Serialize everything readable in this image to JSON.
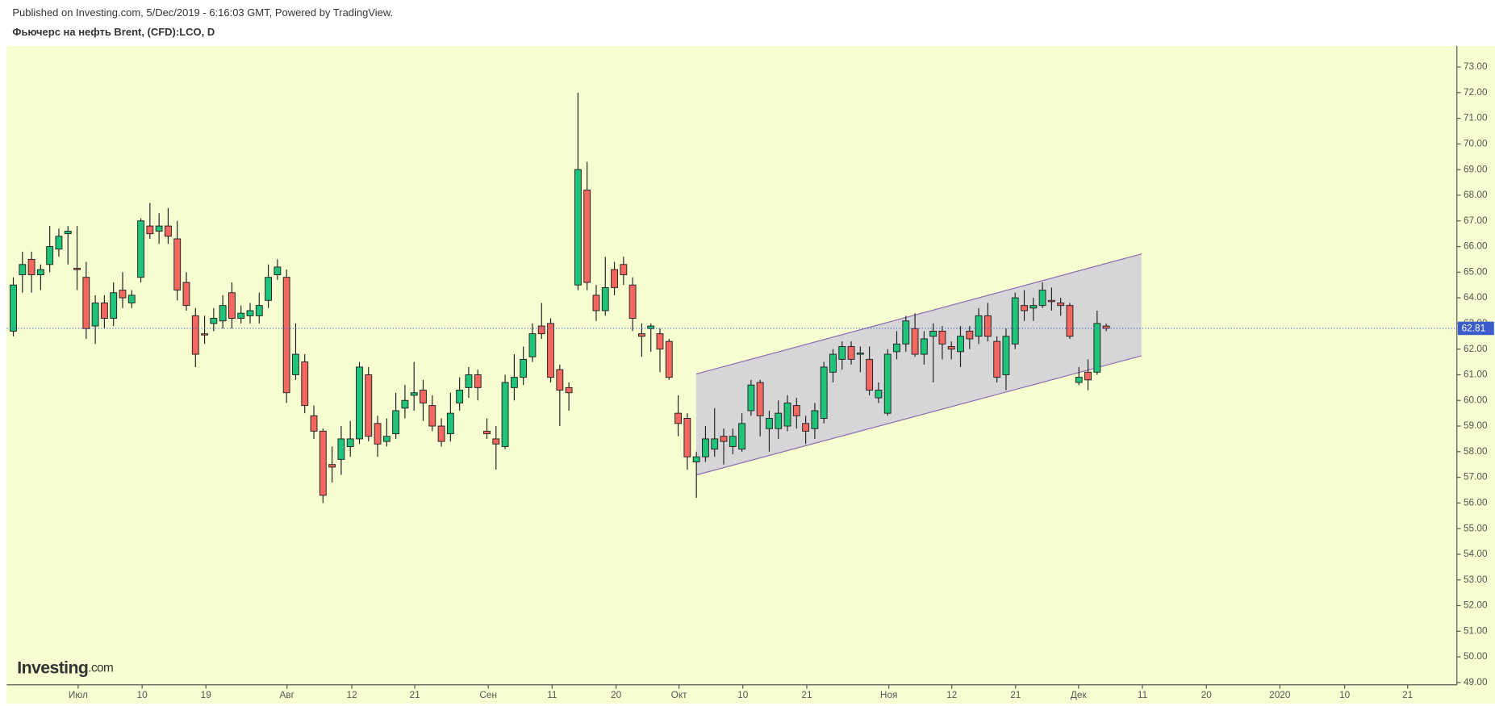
{
  "header": {
    "published": "Published on Investing.com, 5/Dec/2019 - 6:16:03 GMT, Powered by TradingView.",
    "instrument": "Фьючерс на нефть Brent, (CFD):LCO, D"
  },
  "logo": {
    "name": "Investing",
    "suffix": ".com"
  },
  "chart_data": {
    "type": "candlestick",
    "background": "#f6fdd0",
    "up_color": "#1fc47a",
    "down_color": "#f2675f",
    "grid": false,
    "x": [
      0,
      1,
      2,
      3,
      4,
      5,
      6,
      7,
      8,
      9,
      10,
      11,
      12,
      13,
      14,
      15,
      16,
      17,
      18,
      19,
      20,
      21,
      22,
      23,
      24,
      25,
      26,
      27,
      28,
      29,
      30,
      31,
      32,
      33,
      34,
      35,
      36,
      37,
      38,
      39,
      40,
      41,
      42,
      43,
      44,
      45,
      46,
      47,
      48,
      49,
      50,
      51,
      52,
      53,
      54,
      55,
      56,
      57,
      58,
      59,
      60,
      61,
      62,
      63,
      64,
      65,
      66,
      67,
      68,
      69,
      70,
      71,
      72,
      73,
      74,
      75,
      76,
      77,
      78,
      79,
      80,
      81,
      82,
      83,
      84,
      85,
      86,
      87,
      88,
      89,
      90,
      91,
      92,
      93,
      94,
      95,
      96,
      97,
      98,
      99,
      100,
      101,
      102,
      103,
      104,
      105,
      106,
      107,
      108,
      109,
      110,
      111,
      112,
      113,
      114,
      115,
      116,
      117,
      118,
      119,
      120
    ],
    "open": [
      62.7,
      64.9,
      65.5,
      64.9,
      65.3,
      65.9,
      66.5,
      65.15,
      64.8,
      62.9,
      63.8,
      63.2,
      64.3,
      63.8,
      64.8,
      66.8,
      66.6,
      66.8,
      66.3,
      64.6,
      63.3,
      62.6,
      63.0,
      63.1,
      64.2,
      63.2,
      63.3,
      63.3,
      63.9,
      64.9,
      64.8,
      61.0,
      61.5,
      59.4,
      58.8,
      57.5,
      57.7,
      58.2,
      58.5,
      61.0,
      59.1,
      58.4,
      58.7,
      59.7,
      60.2,
      60.4,
      59.8,
      59.0,
      58.7,
      59.9,
      60.5,
      61.0,
      58.8,
      58.5,
      58.2,
      60.5,
      60.9,
      61.7,
      62.9,
      63.0,
      61.2,
      60.5,
      64.5,
      68.2,
      64.1,
      63.5,
      65.1,
      65.3,
      64.5,
      62.6,
      62.8,
      62.6,
      62.3,
      59.5,
      59.3,
      57.6,
      57.8,
      58.1,
      58.6,
      58.2,
      58.1,
      59.6,
      60.7,
      58.9,
      58.9,
      59.0,
      59.8,
      59.1,
      58.9,
      59.3,
      61.1,
      61.6,
      62.1,
      61.8,
      61.6,
      60.1,
      59.5,
      61.9,
      62.2,
      62.8,
      61.8,
      62.5,
      62.7,
      62.1,
      61.9,
      62.7,
      62.5,
      63.3,
      62.3,
      61.0,
      62.2,
      63.7,
      63.6,
      63.7,
      63.9,
      63.8,
      63.7,
      60.7,
      61.1,
      61.1,
      62.9
    ],
    "high": [
      64.8,
      65.8,
      65.8,
      65.3,
      66.8,
      66.7,
      66.8,
      66.8,
      65.4,
      64.1,
      64.1,
      64.6,
      65.0,
      64.3,
      67.1,
      67.7,
      67.3,
      67.5,
      67.0,
      65.0,
      63.6,
      63.3,
      63.6,
      64.1,
      64.6,
      63.7,
      63.8,
      64.2,
      65.3,
      65.5,
      65.1,
      63.0,
      61.8,
      59.8,
      58.9,
      58.2,
      59.0,
      59.2,
      61.5,
      61.3,
      59.4,
      59.3,
      60.3,
      60.6,
      61.5,
      60.8,
      60.2,
      59.3,
      60.3,
      60.9,
      61.3,
      61.2,
      59.3,
      59.0,
      61.0,
      61.8,
      62.1,
      63.0,
      63.8,
      63.2,
      61.4,
      60.7,
      72.0,
      69.3,
      64.5,
      65.6,
      65.4,
      65.6,
      64.8,
      63.0,
      63.0,
      62.8,
      62.4,
      60.2,
      59.5,
      58.0,
      59.0,
      59.7,
      58.9,
      58.9,
      59.5,
      60.8,
      60.8,
      59.6,
      60.0,
      60.2,
      60.1,
      59.4,
      59.9,
      61.5,
      62.0,
      62.3,
      62.3,
      62.1,
      62.1,
      60.7,
      62.0,
      62.7,
      63.3,
      63.4,
      62.7,
      63.0,
      62.9,
      62.3,
      62.9,
      62.9,
      63.6,
      63.8,
      62.5,
      62.8,
      64.2,
      64.3,
      64.0,
      64.6,
      64.4,
      64.0,
      63.8,
      61.3,
      61.6,
      63.5,
      63.0
    ],
    "low": [
      62.5,
      64.2,
      64.2,
      64.3,
      65.0,
      65.6,
      65.3,
      64.3,
      62.4,
      62.2,
      62.8,
      62.9,
      63.6,
      63.6,
      64.6,
      66.3,
      66.1,
      66.1,
      63.9,
      63.5,
      61.3,
      62.2,
      62.7,
      62.8,
      62.8,
      63.0,
      63.0,
      63.0,
      63.6,
      64.7,
      59.9,
      60.8,
      59.5,
      58.5,
      56.0,
      56.8,
      57.1,
      57.8,
      58.3,
      58.4,
      57.8,
      58.2,
      58.5,
      59.3,
      59.6,
      59.2,
      58.8,
      58.2,
      58.4,
      59.6,
      60.1,
      60.0,
      58.5,
      57.3,
      58.1,
      60.0,
      60.6,
      61.5,
      62.4,
      60.7,
      59.0,
      59.6,
      64.3,
      64.3,
      63.1,
      63.3,
      64.1,
      64.5,
      62.7,
      61.7,
      61.9,
      61.1,
      60.8,
      58.6,
      57.3,
      56.2,
      57.6,
      57.8,
      57.5,
      57.9,
      58.0,
      59.4,
      58.6,
      58.0,
      58.5,
      58.8,
      58.9,
      58.3,
      58.5,
      59.1,
      60.7,
      61.2,
      61.4,
      61.1,
      60.2,
      59.9,
      59.4,
      61.6,
      61.9,
      61.7,
      61.4,
      60.7,
      61.6,
      61.6,
      61.3,
      62.0,
      62.2,
      62.3,
      60.7,
      60.4,
      62.0,
      63.1,
      63.1,
      63.6,
      63.5,
      63.3,
      62.4,
      60.6,
      60.4,
      61.0,
      62.7
    ],
    "close": [
      64.5,
      65.3,
      64.9,
      65.1,
      66.0,
      66.4,
      66.6,
      65.1,
      62.8,
      63.8,
      63.2,
      64.2,
      64.0,
      64.1,
      67.0,
      66.5,
      66.8,
      66.4,
      64.3,
      63.7,
      61.8,
      62.55,
      63.2,
      63.7,
      63.2,
      63.4,
      63.5,
      63.7,
      64.8,
      65.2,
      60.3,
      61.8,
      59.8,
      58.8,
      56.3,
      57.4,
      58.5,
      58.5,
      61.3,
      58.6,
      58.3,
      58.6,
      59.6,
      60.0,
      60.3,
      59.9,
      59.0,
      58.4,
      59.5,
      60.4,
      61.0,
      60.5,
      58.7,
      58.3,
      60.7,
      60.9,
      61.6,
      62.6,
      62.6,
      60.9,
      60.4,
      60.3,
      69.0,
      64.6,
      63.5,
      64.4,
      64.4,
      64.9,
      63.2,
      62.5,
      62.9,
      62.0,
      60.9,
      59.1,
      57.8,
      57.8,
      58.5,
      58.5,
      58.4,
      58.6,
      59.1,
      60.6,
      59.4,
      59.3,
      59.5,
      59.9,
      59.4,
      58.8,
      59.6,
      61.3,
      61.8,
      62.1,
      61.6,
      61.85,
      60.4,
      60.4,
      61.8,
      62.2,
      63.1,
      61.8,
      62.4,
      62.7,
      62.2,
      62.0,
      62.5,
      62.4,
      63.3,
      62.5,
      60.9,
      62.5,
      64.0,
      63.5,
      63.7,
      64.3,
      63.85,
      63.7,
      62.5,
      60.9,
      60.8,
      63.0,
      62.81
    ],
    "xlim": [
      -0.73,
      158.5
    ],
    "xticks": [
      {
        "value": 7.12,
        "label": "Июл"
      },
      {
        "value": 14.14,
        "label": "10"
      },
      {
        "value": 21.15,
        "label": "19"
      },
      {
        "value": 30.05,
        "label": "Авг"
      },
      {
        "value": 37.17,
        "label": "12"
      },
      {
        "value": 44.08,
        "label": "21"
      },
      {
        "value": 52.15,
        "label": "Сен"
      },
      {
        "value": 59.16,
        "label": "11"
      },
      {
        "value": 66.18,
        "label": "20"
      },
      {
        "value": 73.09,
        "label": "Окт"
      },
      {
        "value": 80.1,
        "label": "10"
      },
      {
        "value": 87.12,
        "label": "21"
      },
      {
        "value": 96.13,
        "label": "Ноя"
      },
      {
        "value": 103.04,
        "label": "12"
      },
      {
        "value": 110.05,
        "label": "21"
      },
      {
        "value": 116.96,
        "label": "Дек"
      },
      {
        "value": 123.98,
        "label": "11"
      },
      {
        "value": 131.0,
        "label": "20"
      },
      {
        "value": 139.06,
        "label": "2020"
      },
      {
        "value": 146.18,
        "label": "10"
      },
      {
        "value": 153.09,
        "label": "21"
      }
    ],
    "ylim": [
      48.91,
      73.82
    ],
    "yticks": [
      {
        "value": 49,
        "label": "49.00"
      },
      {
        "value": 50,
        "label": "50.00"
      },
      {
        "value": 51,
        "label": "51.00"
      },
      {
        "value": 52,
        "label": "52.00"
      },
      {
        "value": 53,
        "label": "53.00"
      },
      {
        "value": 54,
        "label": "54.00"
      },
      {
        "value": 55,
        "label": "55.00"
      },
      {
        "value": 56,
        "label": "56.00"
      },
      {
        "value": 57,
        "label": "57.00"
      },
      {
        "value": 58,
        "label": "58.00"
      },
      {
        "value": 59,
        "label": "59.00"
      },
      {
        "value": 60,
        "label": "60.00"
      },
      {
        "value": 61,
        "label": "61.00"
      },
      {
        "value": 62,
        "label": "62.00"
      },
      {
        "value": 63,
        "label": "63.00"
      },
      {
        "value": 64,
        "label": "64.00"
      },
      {
        "value": 65,
        "label": "65.00"
      },
      {
        "value": 66,
        "label": "66.00"
      },
      {
        "value": 67,
        "label": "67.00"
      },
      {
        "value": 68,
        "label": "68.00"
      },
      {
        "value": 69,
        "label": "69.00"
      },
      {
        "value": 70,
        "label": "70.00"
      },
      {
        "value": 71,
        "label": "71.00"
      },
      {
        "value": 72,
        "label": "72.00"
      },
      {
        "value": 73,
        "label": "73.00"
      }
    ],
    "last_price": 62.81,
    "last_price_color": "#3d5ccc",
    "channel": {
      "color": "#8a6cb0",
      "x": [
        74.97,
        123.87
      ],
      "upper": [
        61.03,
        65.71
      ],
      "lower": [
        57.09,
        61.74
      ]
    }
  }
}
